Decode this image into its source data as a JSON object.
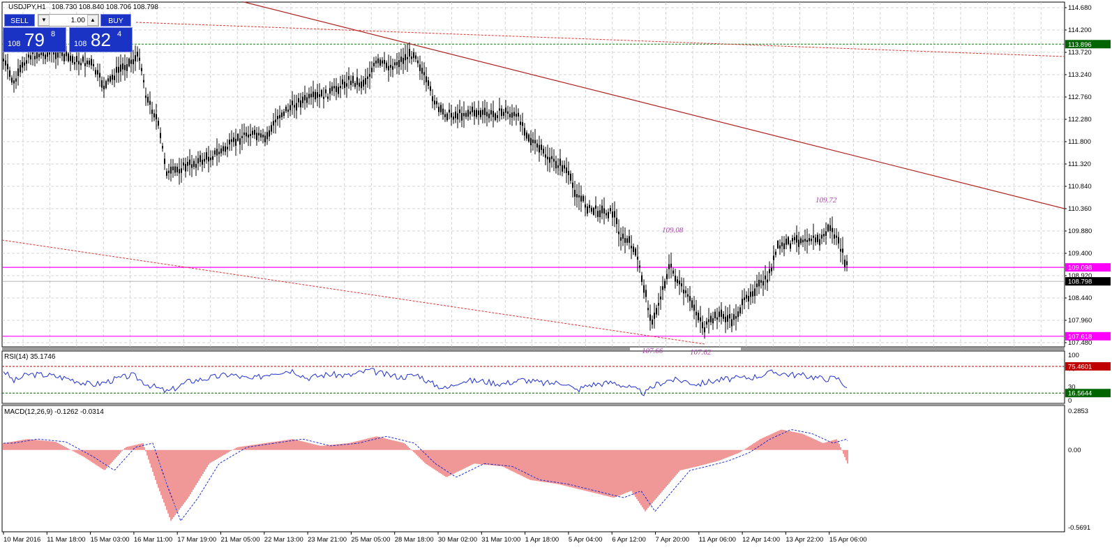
{
  "header": {
    "symbol_timeframe": "USDJPY,H1",
    "ohlc": "108.730 108.840 108.706 108.798"
  },
  "trade_panel": {
    "sell_label": "SELL",
    "buy_label": "BUY",
    "lot_value": "1.00",
    "sell_price_small": "108",
    "sell_price_big": "79",
    "sell_price_sup": "8",
    "buy_price_small": "108",
    "buy_price_big": "82",
    "buy_price_sup": "4",
    "down_arrow_icon": "triangle-down-icon",
    "up_arrow_icon": "triangle-up-icon"
  },
  "price_axis": {
    "ticks": [
      "114.680",
      "114.200",
      "113.720",
      "113.240",
      "112.760",
      "112.280",
      "111.800",
      "111.320",
      "110.840",
      "110.360",
      "109.880",
      "109.400",
      "108.920",
      "108.440",
      "107.960",
      "107.480"
    ],
    "ymax": 114.68,
    "ymin": 107.48,
    "tags": [
      {
        "value": "113.896",
        "price": 113.896,
        "bg": "#006400"
      },
      {
        "value": "109.098",
        "price": 109.098,
        "bg": "#ff00ff"
      },
      {
        "value": "108.798",
        "price": 108.798,
        "bg": "#000000"
      },
      {
        "value": "107.618",
        "price": 107.618,
        "bg": "#ff00ff"
      }
    ]
  },
  "annotations": [
    {
      "text": "109.72"
    },
    {
      "text": "109.08"
    },
    {
      "text": "107.66"
    },
    {
      "text": "107.62"
    }
  ],
  "rsi": {
    "label": "RSI(14) 35.1746",
    "axis_ticks": [
      "100",
      "70",
      "30",
      "0"
    ],
    "levels": [
      {
        "value": "75.4601",
        "level": 75.4601,
        "color": "#c00000"
      },
      {
        "value": "16.5644",
        "level": 16.5644,
        "color": "#006400"
      }
    ]
  },
  "macd": {
    "label": "MACD(12,26,9) -0.1262 -0.0314",
    "axis_ticks": [
      "0.2853",
      "0.00",
      "-0.5691"
    ],
    "ymax": 0.2853,
    "ymin": -0.5691
  },
  "time_axis": {
    "labels": [
      "10 Mar 2016",
      "11 Mar 18:00",
      "15 Mar 03:00",
      "16 Mar 11:00",
      "17 Mar 19:00",
      "21 Mar 05:00",
      "22 Mar 13:00",
      "23 Mar 21:00",
      "25 Mar 05:00",
      "28 Mar 18:00",
      "30 Mar 02:00",
      "31 Mar 10:00",
      "1 Apr 18:00",
      "5 Apr 04:00",
      "6 Apr 12:00",
      "7 Apr 20:00",
      "11 Apr 06:00",
      "12 Apr 14:00",
      "13 Apr 22:00",
      "15 Apr 06:00"
    ]
  },
  "colors": {
    "candle": "#000000",
    "rsi_line": "#1f2fd0",
    "macd_hist": "#e03030",
    "macd_signal": "#1f2fd0",
    "trendline": "#b02020",
    "grid": "#c8c8c8"
  }
}
